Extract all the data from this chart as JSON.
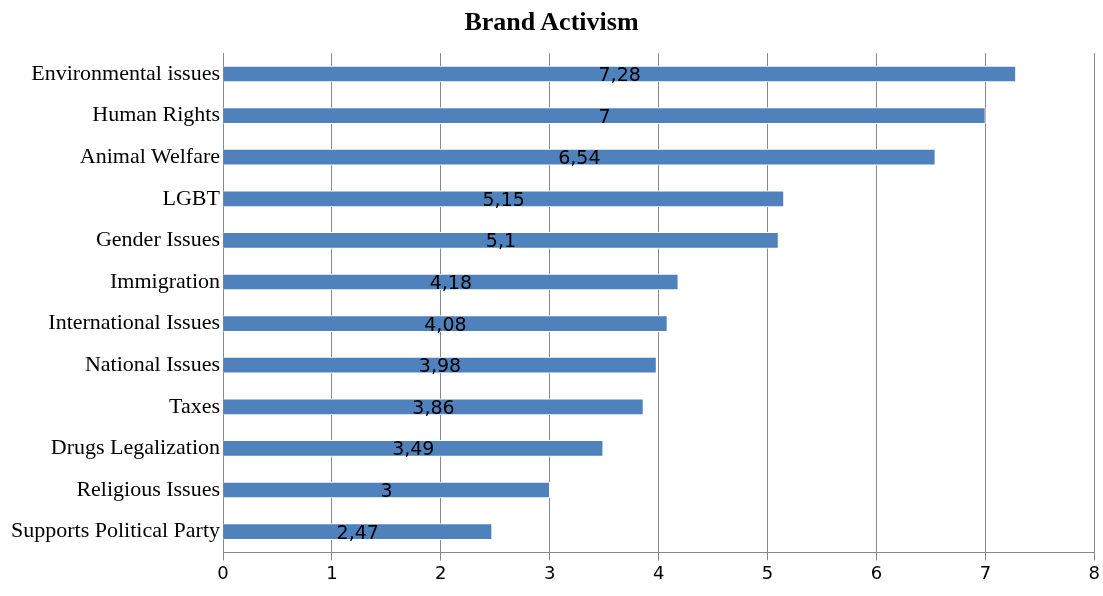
{
  "chart_data": {
    "type": "bar",
    "orientation": "horizontal",
    "title": "Brand Activism",
    "categories": [
      "Environmental issues",
      "Human Rights",
      "Animal Welfare",
      "LGBT",
      "Gender Issues",
      "Immigration",
      "International Issues",
      "National Issues",
      "Taxes",
      "Drugs Legalization",
      "Religious Issues",
      "Supports Political Party"
    ],
    "values": [
      7.28,
      7,
      6.54,
      5.15,
      5.1,
      4.18,
      4.08,
      3.98,
      3.86,
      3.49,
      3,
      2.47
    ],
    "value_labels": [
      "7,28",
      "7",
      "6,54",
      "5,15",
      "5,1",
      "4,18",
      "4,08",
      "3,98",
      "3,86",
      "3,49",
      "3",
      "2,47"
    ],
    "color": "#4f81bd",
    "xlim": [
      0,
      8
    ],
    "xticks": [
      0,
      1,
      2,
      3,
      4,
      5,
      6,
      7,
      8
    ],
    "grid": "x",
    "legend": false
  }
}
